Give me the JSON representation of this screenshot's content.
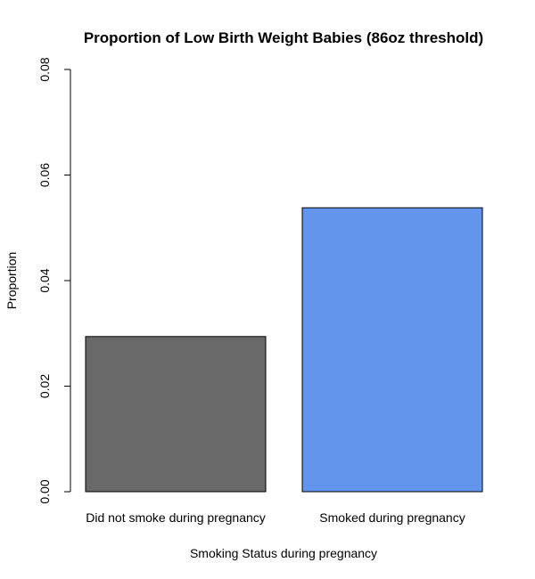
{
  "chart_data": {
    "type": "bar",
    "title": "Proportion of Low Birth Weight Babies (86oz threshold)",
    "xlabel": "Smoking Status during pregnancy",
    "ylabel": "Proportion",
    "categories": [
      "Did not smoke during pregnancy",
      "Smoked during pregnancy"
    ],
    "values": [
      0.0294,
      0.0538
    ],
    "colors": [
      "#696969",
      "#6495ED"
    ],
    "ylim": [
      0,
      0.08
    ],
    "yticks": [
      "0.00",
      "0.02",
      "0.04",
      "0.06",
      "0.08"
    ],
    "ytick_values": [
      0,
      0.02,
      0.04,
      0.06,
      0.08
    ],
    "grid": false,
    "legend": "none"
  }
}
